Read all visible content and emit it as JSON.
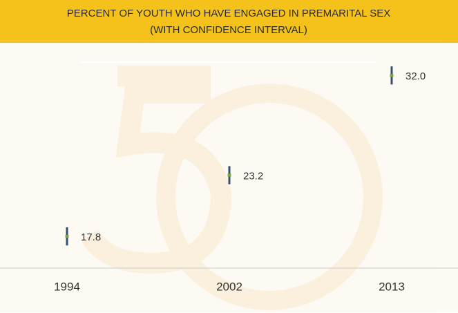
{
  "chart_data": {
    "type": "errorpoint",
    "title": "PERCENT OF YOUTH WHO HAVE ENGAGED IN PREMARITAL SEX",
    "subtitle": "(WITH CONFIDENCE INTERVAL)",
    "categories": [
      "1994",
      "2002",
      "2013"
    ],
    "values": [
      17.8,
      23.2,
      32.0
    ],
    "value_labels": [
      "17.8",
      "23.2",
      "32.0"
    ],
    "errors": [
      0.8,
      0.8,
      0.8
    ],
    "color": "#35506e",
    "ylim": [
      15,
      35
    ]
  }
}
